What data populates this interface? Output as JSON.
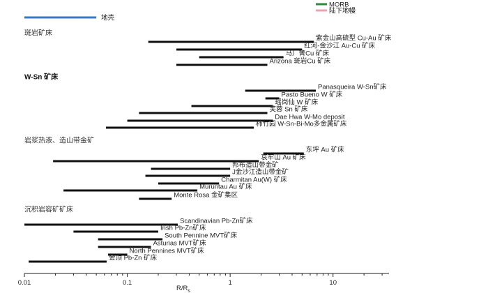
{
  "chart_data": {
    "type": "range-bar",
    "xlabel": "R/R",
    "xlabel_subscript": "s",
    "xscale": "log",
    "xlim": [
      0.01,
      35
    ],
    "xticks": [
      {
        "v": 0.01,
        "label": "0.01"
      },
      {
        "v": 0.1,
        "label": "0.1"
      },
      {
        "v": 1,
        "label": "1"
      },
      {
        "v": 10,
        "label": "10"
      }
    ],
    "legend": {
      "placement": "top-right",
      "items": [
        {
          "label": "MORB",
          "color": "#2e8b3e"
        },
        {
          "label": "陆下地幔",
          "color": "#f2a0b0"
        }
      ]
    },
    "reference": {
      "label": "地壳",
      "x": [
        0.01,
        0.05
      ],
      "color": "#3a78c9"
    },
    "groups": [
      {
        "label": "斑岩矿床",
        "bold": false,
        "deposits": [
          {
            "name": "紫金山高硫型 Cu-Au 矿床",
            "x": [
              0.16,
              6.5
            ]
          },
          {
            "name": "红河-金沙江 Au-Cu 矿床",
            "x": [
              0.3,
              5.0
            ]
          },
          {
            "name": "马厂箐Cu 矿床",
            "x": [
              0.5,
              3.3
            ]
          },
          {
            "name": "Arizona 斑岩Cu 矿床",
            "x": [
              0.3,
              2.3
            ]
          }
        ]
      },
      {
        "label": "W-Sn 矿床",
        "bold": true,
        "deposits": [
          {
            "name": "Panasqueira W-Sn矿床",
            "x": [
              1.4,
              6.8
            ]
          },
          {
            "name": "Pasto Bueno W 矿床",
            "x": [
              2.2,
              3.0
            ]
          },
          {
            "name": "瑶岗仙 W 矿床",
            "x": [
              0.42,
              2.6
            ]
          },
          {
            "name": "芙蓉 Sn 矿床",
            "x": [
              0.13,
              2.3
            ]
          },
          {
            "name": "Dae Hwa W-Mo deposit",
            "x": [
              0.1,
              2.6
            ]
          },
          {
            "name": "柿竹园 W-Sn-Bi-Mo多金属矿床",
            "x": [
              0.062,
              1.7
            ]
          }
        ]
      },
      {
        "label": "岩浆热液、造山带金矿",
        "bold": false,
        "deposits": [
          {
            "name": "东坪 Au 矿床",
            "x": [
              2.1,
              5.2
            ]
          },
          {
            "name": "哀牢山  Au 矿床",
            "x": [
              0.019,
              1.9
            ]
          },
          {
            "name": "邦布造山带金矿",
            "x": [
              0.17,
              1.0
            ]
          },
          {
            "name": "J金沙江造山带金矿",
            "x": [
              0.15,
              1.0
            ]
          },
          {
            "name": "Charmitan Au(W) 矿床",
            "x": [
              0.2,
              0.78
            ]
          },
          {
            "name": "Muruntau Au 矿床",
            "x": [
              0.024,
              0.48
            ]
          },
          {
            "name": "Monte Rosa 金矿集区",
            "x": [
              0.13,
              0.27
            ]
          }
        ]
      },
      {
        "label": "沉积岩容矿矿床",
        "bold": false,
        "deposits": [
          {
            "name": "Scandinavian Pb-Zn矿床",
            "x": [
              0.01,
              0.31
            ]
          },
          {
            "name": "Irish Pb-Zn矿床",
            "x": [
              0.03,
              0.2
            ]
          },
          {
            "name": "South Pennine MVT矿床",
            "x": [
              0.052,
              0.22
            ]
          },
          {
            "name": "Asturias MVT矿床",
            "x": [
              0.052,
              0.17
            ]
          },
          {
            "name": "North Pennines MVT矿床",
            "x": [
              0.065,
              0.1
            ]
          },
          {
            "name": "金顶 Pb-Zn 矿床",
            "x": [
              0.011,
              0.063
            ]
          }
        ]
      }
    ]
  }
}
